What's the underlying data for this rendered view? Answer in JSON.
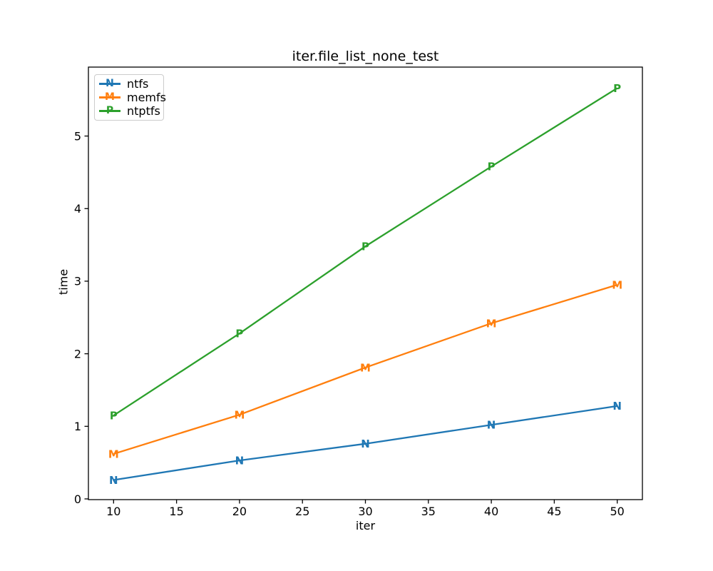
{
  "chart_data": {
    "type": "line",
    "title": "iter.file_list_none_test",
    "xlabel": "iter",
    "ylabel": "time",
    "x": [
      10,
      20,
      30,
      40,
      50
    ],
    "series": [
      {
        "name": "ntfs",
        "marker": "N",
        "color": "#1f77b4",
        "values": [
          0.26,
          0.53,
          0.76,
          1.02,
          1.28
        ]
      },
      {
        "name": "memfs",
        "marker": "M",
        "color": "#ff7f0e",
        "values": [
          0.62,
          1.16,
          1.81,
          2.42,
          2.95
        ]
      },
      {
        "name": "ntptfs",
        "marker": "P",
        "color": "#2ca02c",
        "values": [
          1.15,
          2.28,
          3.48,
          4.58,
          5.66
        ]
      }
    ],
    "xticks": [
      10,
      15,
      20,
      25,
      30,
      35,
      40,
      45,
      50
    ],
    "yticks": [
      0,
      1,
      2,
      3,
      4,
      5
    ],
    "xlim": [
      8,
      52
    ],
    "ylim": [
      -0.01,
      5.95
    ],
    "grid": false,
    "legend_position": "upper left",
    "background": "#ffffff",
    "axis_color": "#000000"
  }
}
